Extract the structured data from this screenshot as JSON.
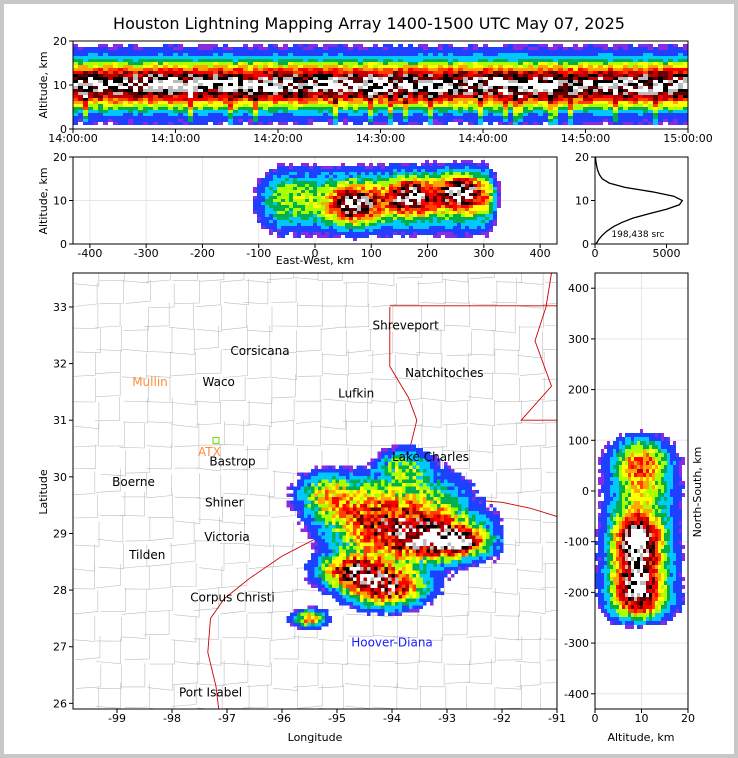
{
  "title": "Houston Lightning Mapping Array 1400-1500 UTC May 07, 2025",
  "colors": {
    "density_scale": [
      "#8a2be2",
      "#2040ff",
      "#00c8ff",
      "#00b050",
      "#aaff00",
      "#ffff00",
      "#ffa500",
      "#ff4000",
      "#ff0000",
      "#c00000",
      "#600000",
      "#000000",
      "#bbbbbb",
      "#ffffff"
    ],
    "state_border": "#cc0000",
    "county_border": "#bdbdbd"
  },
  "chart_data": [
    {
      "id": "time_altitude",
      "type": "heatmap",
      "xlabel": "",
      "ylabel": "Altitude, km",
      "xlim": [
        "14:00:00",
        "15:00:00"
      ],
      "x_ticks": [
        "14:00:00",
        "14:10:00",
        "14:20:00",
        "14:30:00",
        "14:40:00",
        "14:50:00",
        "15:00:00"
      ],
      "ylim": [
        0,
        20
      ],
      "y_ticks": [
        "0",
        "10",
        "20"
      ],
      "source_altitude_range_km": [
        0,
        20
      ],
      "peak_altitude_km": 10
    },
    {
      "id": "eastwest_altitude",
      "type": "heatmap",
      "xlabel": "East-West, km",
      "ylabel": "Altitude, km",
      "xlim": [
        -430,
        430
      ],
      "x_ticks": [
        "-400",
        "-300",
        "-200",
        "-100",
        "0",
        "100",
        "200",
        "300",
        "400"
      ],
      "ylim": [
        0,
        20
      ],
      "y_ticks": [
        "0",
        "10",
        "20"
      ],
      "source_extent_ew_km": [
        -100,
        320
      ],
      "cores": [
        {
          "x_km": 70,
          "alt_km": 9
        },
        {
          "x_km": 170,
          "alt_km": 11
        },
        {
          "x_km": 260,
          "alt_km": 12
        }
      ]
    },
    {
      "id": "altitude_histogram",
      "type": "line",
      "xlabel": "",
      "ylabel": "",
      "xlim": [
        0,
        6500
      ],
      "x_ticks": [
        "0",
        "5000"
      ],
      "ylim": [
        0,
        20
      ],
      "y_ticks": [
        "0",
        "10",
        "20"
      ],
      "annotation": "198,438 src",
      "altitude_km": [
        0,
        1,
        2,
        3,
        4,
        5,
        6,
        7,
        8,
        9,
        10,
        11,
        12,
        13,
        14,
        15,
        16,
        17,
        18,
        19,
        20
      ],
      "counts": [
        80,
        250,
        500,
        850,
        1300,
        1900,
        2700,
        3800,
        5000,
        5900,
        6100,
        5500,
        4000,
        2100,
        1000,
        500,
        300,
        180,
        110,
        60,
        30
      ]
    },
    {
      "id": "plan_view",
      "type": "heatmap",
      "xlabel": "Longitude",
      "ylabel": "Latitude",
      "xlim": [
        -99.8,
        -91.0
      ],
      "x_ticks": [
        "-99",
        "-98",
        "-97",
        "-96",
        "-95",
        "-94",
        "-93",
        "-92",
        "-91"
      ],
      "ylim": [
        25.9,
        33.6
      ],
      "y_ticks": [
        "26",
        "27",
        "28",
        "29",
        "30",
        "31",
        "32",
        "33"
      ],
      "cities": [
        {
          "name": "Shreveport",
          "lon": -93.75,
          "lat": 32.6,
          "color": "#000000"
        },
        {
          "name": "Corsicana",
          "lon": -96.4,
          "lat": 32.15,
          "color": "#000000"
        },
        {
          "name": "Natchitoches",
          "lon": -93.05,
          "lat": 31.76,
          "color": "#000000"
        },
        {
          "name": "Mullin",
          "lon": -98.4,
          "lat": 31.6,
          "color": "#ff8c40"
        },
        {
          "name": "Waco",
          "lon": -97.15,
          "lat": 31.6,
          "color": "#000000"
        },
        {
          "name": "Lufkin",
          "lon": -94.65,
          "lat": 31.4,
          "color": "#000000"
        },
        {
          "name": "ATX",
          "lon": -97.32,
          "lat": 30.37,
          "color": "#ff8c40"
        },
        {
          "name": "Bastrop",
          "lon": -96.9,
          "lat": 30.2,
          "color": "#000000"
        },
        {
          "name": "Lake Charles",
          "lon": -93.3,
          "lat": 30.28,
          "color": "#000000"
        },
        {
          "name": "Boerne",
          "lon": -98.7,
          "lat": 29.84,
          "color": "#000000"
        },
        {
          "name": "Shiner",
          "lon": -97.05,
          "lat": 29.48,
          "color": "#000000"
        },
        {
          "name": "Victoria",
          "lon": -97.0,
          "lat": 28.87,
          "color": "#000000"
        },
        {
          "name": "Tilden",
          "lon": -98.45,
          "lat": 28.55,
          "color": "#000000"
        },
        {
          "name": "Corpus Christi",
          "lon": -96.9,
          "lat": 27.8,
          "color": "#000000"
        },
        {
          "name": "Hoover-Diana",
          "lon": -94.0,
          "lat": 27.0,
          "color": "#1a1aff"
        },
        {
          "name": "Port Isabel",
          "lon": -97.3,
          "lat": 26.12,
          "color": "#000000"
        }
      ]
    },
    {
      "id": "altitude_northsouth",
      "type": "heatmap",
      "xlabel": "Altitude, km",
      "ylabel": "North-South, km",
      "xlim": [
        0,
        20
      ],
      "x_ticks": [
        "0",
        "10",
        "20"
      ],
      "ylim": [
        -430,
        430
      ],
      "y_ticks": [
        "-400",
        "-300",
        "-200",
        "-100",
        "0",
        "100",
        "200",
        "300",
        "400"
      ],
      "source_extent_ns_km": [
        -270,
        120
      ]
    }
  ]
}
